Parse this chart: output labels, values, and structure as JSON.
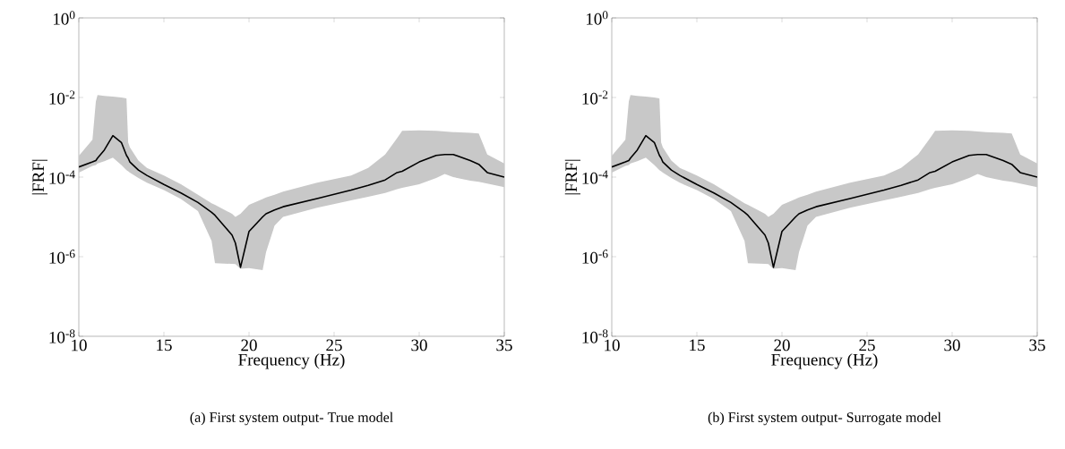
{
  "chart_data": [
    {
      "type": "line",
      "title": "(a) First system output- True model",
      "xlabel": "Frequency (Hz)",
      "ylabel": "|FRF|",
      "log": "y",
      "x": [
        10,
        10.8,
        11,
        11.1,
        11.5,
        12,
        12.5,
        12.8,
        12.9,
        13,
        13.5,
        14,
        15,
        16,
        17,
        17.8,
        18,
        19,
        19.2,
        19.5,
        20,
        20.8,
        21,
        21.5,
        22,
        24,
        26,
        27,
        28,
        28.7,
        29,
        30,
        31,
        31.5,
        32,
        33,
        33.5,
        34,
        35
      ],
      "series": [
        {
          "color": "#000000",
          "values": [
            0.00018,
            0.00024,
            0.00026,
            0.0003,
            0.00048,
            0.0011,
            0.00074,
            0.00035,
            0.0003,
            0.00024,
            0.00015,
            0.00011,
            6.5e-05,
            4e-05,
            2.3e-05,
            1.3e-05,
            1.1e-05,
            3.5e-06,
            2.2e-06,
            5.4e-07,
            4.3e-06,
            1e-05,
            1.2e-05,
            1.5e-05,
            1.8e-05,
            2.9e-05,
            4.7e-05,
            6.2e-05,
            8.5e-05,
            0.00013,
            0.00014,
            0.00024,
            0.00035,
            0.00037,
            0.00037,
            0.00026,
            0.00021,
            0.00013,
            0.0001
          ],
          "lower": [
            0.00013,
            0.00019,
            0.0002,
            0.00022,
            0.00025,
            0.00031,
            0.0002,
            0.00015,
            0.00014,
            0.00013,
            9.5e-05,
            7.2e-05,
            4.7e-05,
            2.8e-05,
            1.4e-05,
            2.5e-06,
            6.9e-07,
            6.6e-07,
            6.5e-07,
            5e-07,
            5.2e-07,
            4.6e-07,
            1.3e-06,
            6e-06,
            1e-05,
            1.7e-05,
            2.6e-05,
            3.2e-05,
            4e-05,
            5e-05,
            5.4e-05,
            6.6e-05,
            9.5e-05,
            0.00012,
            0.0001,
            8.1e-05,
            7.6e-05,
            6.9e-05,
            5.6e-05
          ],
          "upper": [
            0.00034,
            0.00087,
            0.0079,
            0.0115,
            0.011,
            0.0105,
            0.01,
            0.0095,
            0.00074,
            0.00056,
            0.00026,
            0.00017,
            0.00011,
            6.6e-05,
            3.6e-05,
            2.2e-05,
            2e-05,
            1.2e-05,
            1e-05,
            1.2e-05,
            2e-05,
            2.8e-05,
            3.1e-05,
            3.6e-05,
            4.3e-05,
            7.2e-05,
            0.00011,
            0.00017,
            0.00037,
            0.00095,
            0.00145,
            0.0015,
            0.00145,
            0.0014,
            0.00135,
            0.0013,
            0.00125,
            0.00037,
            0.00022
          ]
        }
      ],
      "xlim": [
        10,
        35
      ],
      "xticks": [
        10,
        15,
        20,
        25,
        30,
        35
      ],
      "ylim": [
        1e-08,
        1
      ],
      "yticks": [
        {
          "value": 1e-08,
          "label": "10$^{-8}$"
        },
        {
          "value": 1e-06,
          "label": "10$^{-6}$"
        },
        {
          "value": 0.0001,
          "label": "10$^{-4}$"
        },
        {
          "value": 0.01,
          "label": "10$^{-2}$"
        },
        {
          "value": 1,
          "label": "10$^{0}$"
        }
      ]
    },
    {
      "type": "line",
      "title": "(b) First system output- Surrogate model",
      "xlabel": "Frequency (Hz)",
      "ylabel": "|FRF|",
      "log": "y",
      "x": [
        10,
        10.8,
        11,
        11.1,
        11.5,
        12,
        12.5,
        12.8,
        12.9,
        13,
        13.5,
        14,
        15,
        16,
        17,
        17.8,
        18,
        19,
        19.2,
        19.5,
        20,
        20.8,
        21,
        21.5,
        22,
        24,
        26,
        27,
        28,
        28.7,
        29,
        30,
        31,
        31.5,
        32,
        33,
        33.5,
        34,
        35
      ],
      "series": [
        {
          "color": "#000000",
          "values": [
            0.00018,
            0.00024,
            0.00026,
            0.0003,
            0.00048,
            0.0011,
            0.00074,
            0.00035,
            0.0003,
            0.00024,
            0.00015,
            0.00011,
            6.5e-05,
            4e-05,
            2.3e-05,
            1.3e-05,
            1.1e-05,
            3.5e-06,
            2.2e-06,
            5.4e-07,
            4.3e-06,
            1e-05,
            1.2e-05,
            1.5e-05,
            1.8e-05,
            2.9e-05,
            4.7e-05,
            6.2e-05,
            8.5e-05,
            0.00013,
            0.00014,
            0.00024,
            0.00035,
            0.00037,
            0.00037,
            0.00026,
            0.00021,
            0.00013,
            0.0001
          ],
          "lower": [
            0.00013,
            0.00019,
            0.0002,
            0.00022,
            0.00025,
            0.00031,
            0.0002,
            0.00015,
            0.00014,
            0.00013,
            9.5e-05,
            7.2e-05,
            4.7e-05,
            2.8e-05,
            1.4e-05,
            2.5e-06,
            6.9e-07,
            6.6e-07,
            6.5e-07,
            5e-07,
            5.2e-07,
            4.6e-07,
            1.3e-06,
            6e-06,
            1e-05,
            1.7e-05,
            2.6e-05,
            3.2e-05,
            4e-05,
            5e-05,
            5.4e-05,
            6.6e-05,
            9.5e-05,
            0.00012,
            0.0001,
            8.1e-05,
            7.6e-05,
            6.9e-05,
            5.6e-05
          ],
          "upper": [
            0.00034,
            0.00087,
            0.0079,
            0.0115,
            0.011,
            0.0105,
            0.01,
            0.0095,
            0.00074,
            0.00056,
            0.00026,
            0.00017,
            0.00011,
            6.6e-05,
            3.6e-05,
            2.2e-05,
            2e-05,
            1.2e-05,
            1e-05,
            1.2e-05,
            2e-05,
            2.8e-05,
            3.1e-05,
            3.6e-05,
            4.3e-05,
            7.2e-05,
            0.00011,
            0.00017,
            0.00037,
            0.00095,
            0.00145,
            0.0015,
            0.00145,
            0.0014,
            0.00135,
            0.0013,
            0.00125,
            0.00037,
            0.00022
          ]
        }
      ],
      "xlim": [
        10,
        35
      ],
      "xticks": [
        10,
        15,
        20,
        25,
        30,
        35
      ],
      "ylim": [
        1e-08,
        1
      ],
      "yticks": [
        {
          "value": 1e-08,
          "label": "10$^{-8}$"
        },
        {
          "value": 1e-06,
          "label": "10$^{-6}$"
        },
        {
          "value": 0.0001,
          "label": "10$^{-4}$"
        },
        {
          "value": 0.01,
          "label": "10$^{-2}$"
        },
        {
          "value": 1,
          "label": "10$^{0}$"
        }
      ]
    }
  ]
}
